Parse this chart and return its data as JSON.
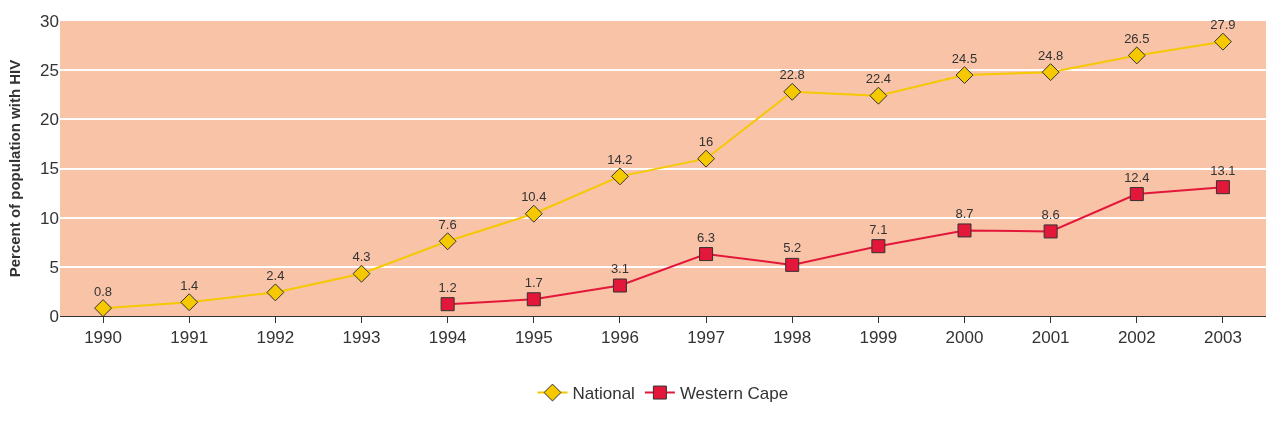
{
  "chart_data": {
    "type": "line",
    "ylabel": "Percent of population with HIV",
    "categories": [
      "1990",
      "1991",
      "1992",
      "1993",
      "1994",
      "1995",
      "1996",
      "1997",
      "1998",
      "1999",
      "2000",
      "2001",
      "2002",
      "2003"
    ],
    "series": [
      {
        "name": "National",
        "color": "#f5c800",
        "marker": "diamond",
        "values": [
          0.8,
          1.4,
          2.4,
          4.3,
          7.6,
          10.4,
          14.2,
          16,
          22.8,
          22.4,
          24.5,
          24.8,
          26.5,
          27.9
        ]
      },
      {
        "name": "Western Cape",
        "color": "#e3173a",
        "marker": "square",
        "values": [
          null,
          null,
          null,
          null,
          1.2,
          1.7,
          3.1,
          6.3,
          5.2,
          7.1,
          8.7,
          8.6,
          12.4,
          13.1
        ]
      }
    ],
    "ylim": [
      0,
      30
    ],
    "yticks": [
      0,
      5,
      10,
      15,
      20,
      25,
      30
    ],
    "grid": "y",
    "legend": "bottom",
    "data_labels": true,
    "line_style": "solid"
  }
}
